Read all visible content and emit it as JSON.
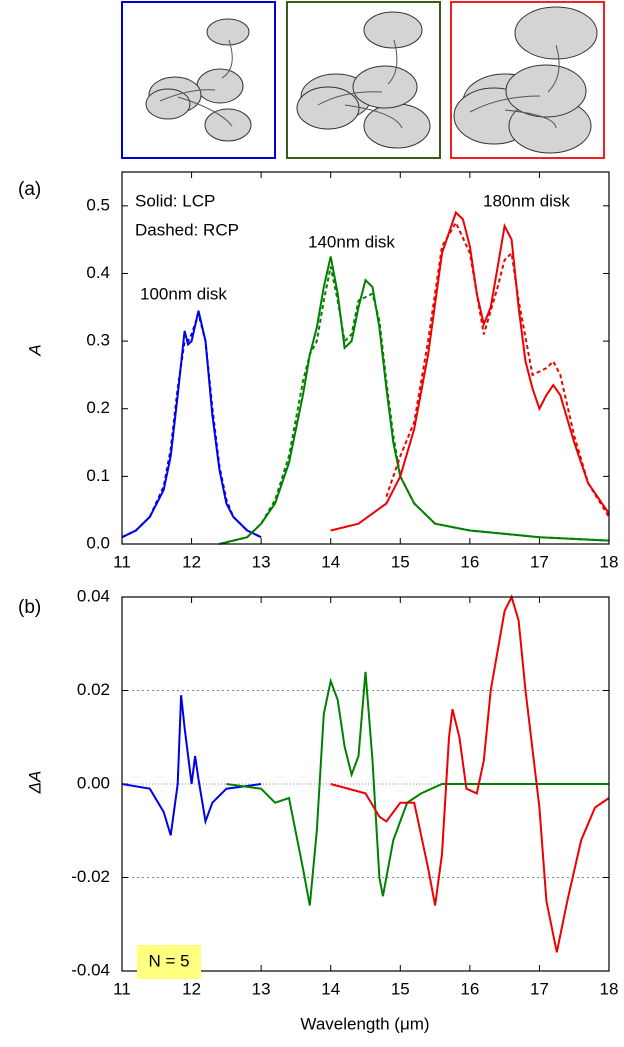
{
  "chart_data": [
    {
      "type": "line",
      "panel_label": "(a)",
      "ylabel": "A",
      "xlim": [
        11,
        18
      ],
      "xticks": [
        11,
        12,
        13,
        14,
        15,
        16,
        17,
        18
      ],
      "ylim": [
        0,
        0.55
      ],
      "yticks": [
        {
          "value": 0,
          "label": "0.0"
        },
        0.1,
        0.2,
        0.3,
        0.4,
        0.5
      ],
      "grid": false,
      "annotations": [
        {
          "text": "Solid: LCP",
          "color": "#000000"
        },
        {
          "text": "Dashed: RCP",
          "color": "#000000"
        },
        {
          "text": "100nm disk",
          "color": "#0000ee"
        },
        {
          "text": "140nm disk",
          "color": "#008000"
        },
        {
          "text": "180nm disk",
          "color": "#ee0000"
        }
      ],
      "series": [
        {
          "color": "#0000ee",
          "style": "solid",
          "x": [
            11.0,
            11.2,
            11.4,
            11.6,
            11.7,
            11.8,
            11.9,
            11.95,
            12.0,
            12.1,
            12.2,
            12.3,
            12.4,
            12.5,
            12.6,
            12.8,
            13.0
          ],
          "values": [
            0.01,
            0.02,
            0.04,
            0.08,
            0.13,
            0.22,
            0.315,
            0.295,
            0.3,
            0.345,
            0.3,
            0.19,
            0.11,
            0.06,
            0.04,
            0.02,
            0.01
          ]
        },
        {
          "color": "#0000ee",
          "style": "dashed",
          "x": [
            11.0,
            11.2,
            11.4,
            11.6,
            11.7,
            11.8,
            11.9,
            11.95,
            12.0,
            12.1,
            12.2,
            12.3,
            12.4,
            12.5,
            12.6,
            12.8,
            13.0
          ],
          "values": [
            0.01,
            0.02,
            0.04,
            0.085,
            0.14,
            0.23,
            0.3,
            0.3,
            0.31,
            0.34,
            0.3,
            0.2,
            0.115,
            0.065,
            0.04,
            0.02,
            0.01
          ]
        },
        {
          "color": "#008000",
          "style": "solid",
          "x": [
            12.4,
            12.8,
            13.0,
            13.2,
            13.4,
            13.6,
            13.7,
            13.8,
            13.9,
            14.0,
            14.1,
            14.2,
            14.3,
            14.4,
            14.5,
            14.6,
            14.7,
            14.8,
            14.9,
            15.0,
            15.2,
            15.5,
            16.0,
            17.0,
            18.0
          ],
          "values": [
            0.0,
            0.01,
            0.03,
            0.06,
            0.12,
            0.22,
            0.28,
            0.32,
            0.38,
            0.425,
            0.37,
            0.29,
            0.3,
            0.35,
            0.39,
            0.38,
            0.32,
            0.23,
            0.15,
            0.1,
            0.06,
            0.03,
            0.02,
            0.01,
            0.005
          ]
        },
        {
          "color": "#008000",
          "style": "dashed",
          "x": [
            12.4,
            12.8,
            13.0,
            13.2,
            13.4,
            13.6,
            13.7,
            13.8,
            13.9,
            14.0,
            14.1,
            14.2,
            14.3,
            14.4,
            14.5,
            14.6,
            14.7,
            14.8,
            14.9,
            15.0,
            15.2,
            15.5,
            16.0,
            17.0,
            18.0
          ],
          "values": [
            0.0,
            0.01,
            0.03,
            0.065,
            0.13,
            0.24,
            0.28,
            0.3,
            0.36,
            0.41,
            0.36,
            0.3,
            0.31,
            0.36,
            0.365,
            0.37,
            0.33,
            0.24,
            0.16,
            0.1,
            0.06,
            0.03,
            0.02,
            0.01,
            0.005
          ]
        },
        {
          "color": "#ee0000",
          "style": "solid",
          "x": [
            14.0,
            14.4,
            14.8,
            15.0,
            15.2,
            15.4,
            15.6,
            15.8,
            15.9,
            16.0,
            16.1,
            16.2,
            16.3,
            16.4,
            16.5,
            16.6,
            16.7,
            16.8,
            16.9,
            17.0,
            17.1,
            17.2,
            17.3,
            17.5,
            17.7,
            18.0
          ],
          "values": [
            0.02,
            0.03,
            0.06,
            0.1,
            0.17,
            0.28,
            0.43,
            0.49,
            0.48,
            0.44,
            0.37,
            0.325,
            0.35,
            0.41,
            0.47,
            0.45,
            0.35,
            0.27,
            0.23,
            0.2,
            0.22,
            0.235,
            0.22,
            0.15,
            0.09,
            0.045
          ]
        },
        {
          "color": "#ee0000",
          "style": "dashed",
          "x": [
            14.8,
            14.9,
            15.0,
            15.2,
            15.4,
            15.6,
            15.8,
            16.0,
            16.2,
            16.4,
            16.5,
            16.6,
            16.7,
            16.9,
            17.1,
            17.2,
            17.3,
            17.5,
            17.7,
            18.0
          ],
          "values": [
            0.07,
            0.1,
            0.13,
            0.18,
            0.3,
            0.44,
            0.475,
            0.43,
            0.31,
            0.38,
            0.42,
            0.43,
            0.36,
            0.25,
            0.26,
            0.27,
            0.25,
            0.16,
            0.09,
            0.04
          ]
        }
      ]
    },
    {
      "type": "line",
      "panel_label": "(b)",
      "ylabel": "ΔA",
      "xlabel": "Wavelength (μm)",
      "xlim": [
        11,
        18
      ],
      "xticks": [
        11,
        12,
        13,
        14,
        15,
        16,
        17,
        18
      ],
      "ylim": [
        -0.04,
        0.04
      ],
      "yticks": [
        -0.04,
        -0.02,
        {
          "value": 0,
          "label": "0.00"
        },
        0.02,
        0.04
      ],
      "grid": true,
      "annotations": [
        {
          "text": "N = 5",
          "color": "#000000",
          "background": "#ffff80"
        }
      ],
      "series": [
        {
          "color": "#0000ee",
          "style": "solid",
          "x": [
            11.0,
            11.4,
            11.6,
            11.7,
            11.8,
            11.85,
            11.9,
            12.0,
            12.05,
            12.1,
            12.2,
            12.3,
            12.5,
            13.0
          ],
          "values": [
            0.0,
            -0.001,
            -0.006,
            -0.011,
            0.0,
            0.019,
            0.012,
            0.0,
            0.006,
            0.001,
            -0.008,
            -0.004,
            -0.001,
            0.0
          ]
        },
        {
          "color": "#008000",
          "style": "solid",
          "x": [
            12.5,
            13.0,
            13.2,
            13.4,
            13.6,
            13.7,
            13.8,
            13.9,
            14.0,
            14.1,
            14.2,
            14.3,
            14.4,
            14.5,
            14.6,
            14.7,
            14.75,
            14.9,
            15.1,
            15.3,
            15.6,
            18.0
          ],
          "values": [
            0.0,
            -0.001,
            -0.004,
            -0.003,
            -0.018,
            -0.026,
            -0.01,
            0.015,
            0.022,
            0.018,
            0.008,
            0.002,
            0.006,
            0.024,
            0.005,
            -0.02,
            -0.024,
            -0.012,
            -0.004,
            -0.002,
            0.0,
            0.0
          ]
        },
        {
          "color": "#ee0000",
          "style": "solid",
          "x": [
            14.0,
            14.5,
            14.7,
            14.8,
            15.0,
            15.2,
            15.4,
            15.5,
            15.6,
            15.7,
            15.75,
            15.85,
            15.95,
            16.1,
            16.2,
            16.3,
            16.5,
            16.6,
            16.7,
            16.8,
            17.0,
            17.1,
            17.25,
            17.4,
            17.6,
            17.8,
            18.0
          ],
          "values": [
            0.0,
            -0.002,
            -0.007,
            -0.008,
            -0.004,
            -0.004,
            -0.018,
            -0.026,
            -0.015,
            0.01,
            0.016,
            0.01,
            -0.001,
            -0.002,
            0.005,
            0.02,
            0.037,
            0.04,
            0.035,
            0.02,
            -0.005,
            -0.025,
            -0.036,
            -0.025,
            -0.012,
            -0.005,
            -0.003
          ]
        }
      ]
    }
  ]
}
